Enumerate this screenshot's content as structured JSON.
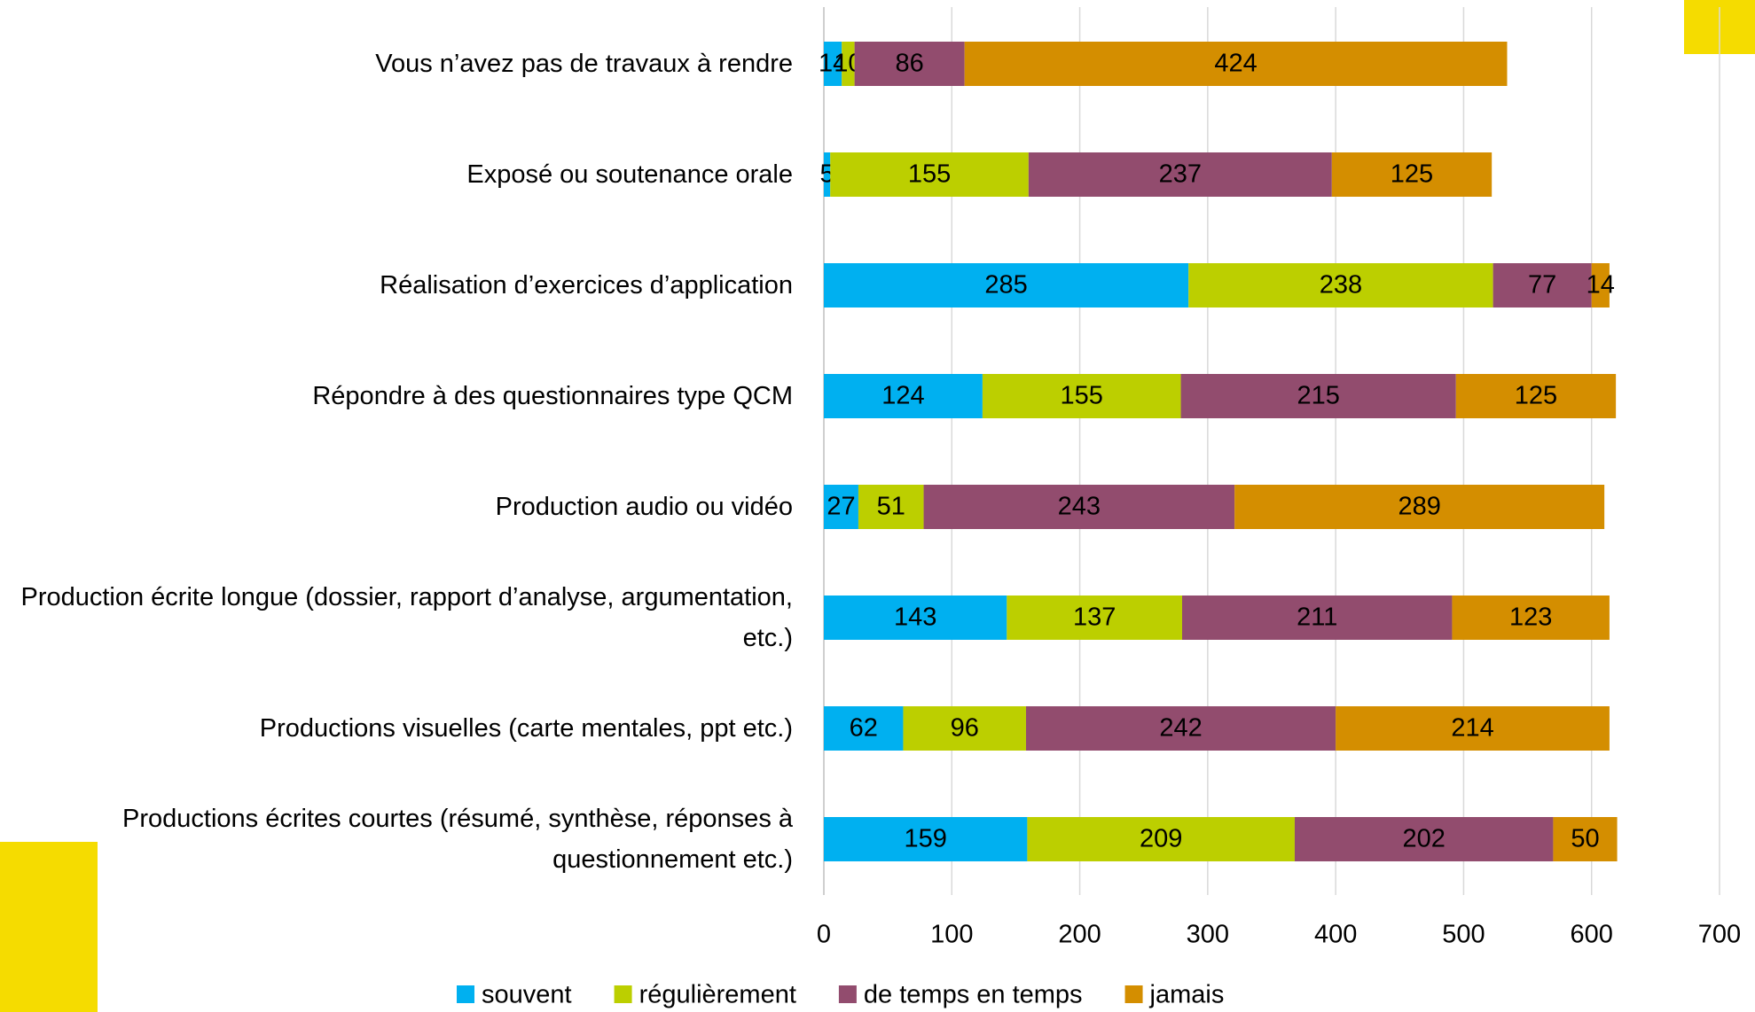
{
  "chart_data": {
    "type": "stacked_bar_horizontal",
    "categories": [
      "Vous n’avez pas de travaux à rendre",
      "Exposé ou soutenance orale",
      "Réalisation d’exercices d’application",
      "Répondre à des questionnaires type QCM",
      "Production audio ou vidéo",
      "Production écrite longue (dossier, rapport d’analyse, argumentation, etc.)",
      "Productions visuelles (carte mentales, ppt etc.)",
      "Productions écrites courtes (résumé, synthèse, réponses à questionnement etc.)"
    ],
    "series": [
      {
        "name": "souvent",
        "color": "#00b0f0",
        "values": [
          14,
          5,
          285,
          124,
          27,
          143,
          62,
          159
        ]
      },
      {
        "name": "régulièrement",
        "color": "#bccf00",
        "values": [
          10,
          155,
          238,
          155,
          51,
          137,
          96,
          209
        ]
      },
      {
        "name": "de temps en temps",
        "color": "#924c6e",
        "values": [
          86,
          237,
          77,
          215,
          243,
          211,
          242,
          202
        ]
      },
      {
        "name": "jamais",
        "color": "#d48e00",
        "values": [
          424,
          125,
          14,
          125,
          289,
          123,
          214,
          50
        ]
      }
    ],
    "xlim": [
      0,
      700
    ],
    "xticks": [
      0,
      100,
      200,
      300,
      400,
      500,
      600,
      700
    ],
    "grid": true,
    "legend": "bottom"
  }
}
